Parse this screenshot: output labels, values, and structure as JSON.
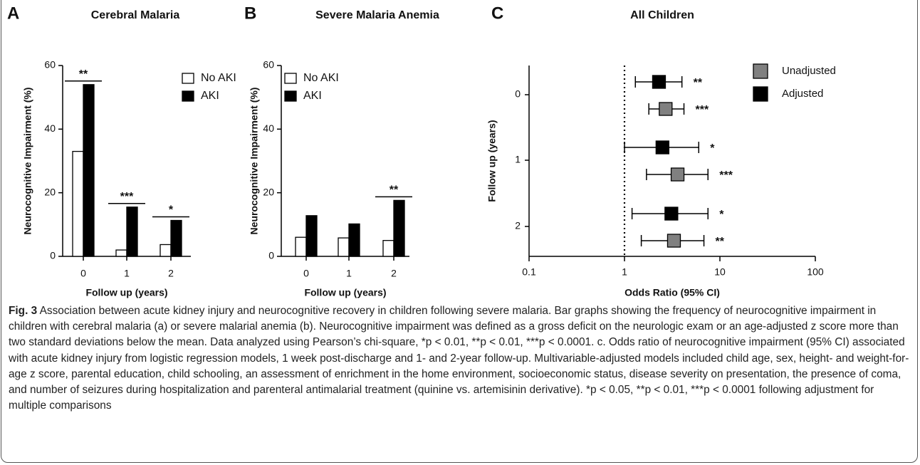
{
  "chart_data": [
    {
      "type": "bar",
      "panel": "A",
      "title": "Cerebral Malaria",
      "xlabel": "Follow up (years)",
      "ylabel": "Neurocognitive Impairment (%)",
      "categories": [
        "0",
        "1",
        "2"
      ],
      "series": [
        {
          "name": "No AKI",
          "color": "#ffffff",
          "values": [
            33,
            2,
            3.7
          ]
        },
        {
          "name": "AKI",
          "color": "#000000",
          "values": [
            54,
            15.5,
            11.3
          ]
        }
      ],
      "annotations": [
        "**",
        "***",
        "*"
      ],
      "ylim": [
        0,
        60
      ],
      "yticks": [
        0,
        20,
        40,
        60
      ]
    },
    {
      "type": "bar",
      "panel": "B",
      "title": "Severe Malaria Anemia",
      "xlabel": "Follow up (years)",
      "ylabel": "Neurocognitive Impairment (%)",
      "categories": [
        "0",
        "1",
        "2"
      ],
      "series": [
        {
          "name": "No AKI",
          "color": "#ffffff",
          "values": [
            6,
            5.8,
            5
          ]
        },
        {
          "name": "AKI",
          "color": "#000000",
          "values": [
            12.8,
            10.2,
            17.6
          ]
        }
      ],
      "annotations": [
        null,
        null,
        "**"
      ],
      "ylim": [
        0,
        60
      ],
      "yticks": [
        0,
        20,
        40,
        60
      ]
    },
    {
      "type": "forest",
      "panel": "C",
      "title": "All Children",
      "xlabel": "Odds Ratio (95% CI)",
      "ylabel": "Follow up (years)",
      "categories": [
        "0",
        "1",
        "2"
      ],
      "log_x": true,
      "reference_line": 1,
      "series": [
        {
          "name": "Unadjusted",
          "color": "#808080",
          "values": [
            2.7,
            3.6,
            3.3
          ],
          "lower": [
            1.8,
            1.7,
            1.5
          ],
          "upper": [
            4.2,
            7.5,
            6.8
          ],
          "labels": [
            "***",
            "***",
            "**"
          ]
        },
        {
          "name": "Adjusted",
          "color": "#000000",
          "values": [
            2.3,
            2.5,
            3.1
          ],
          "lower": [
            1.3,
            1.0,
            1.2
          ],
          "upper": [
            4.0,
            6.0,
            7.5
          ],
          "labels": [
            "**",
            "*",
            "*"
          ]
        }
      ],
      "xlim": [
        0.1,
        100
      ],
      "xticks": [
        0.1,
        1,
        10,
        100
      ]
    }
  ],
  "caption": {
    "label": "Fig. 3",
    "text": "Association between acute kidney injury and neurocognitive recovery in children following severe malaria. Bar graphs showing the frequency of neurocognitive impairment in children with cerebral malaria (a) or severe malarial anemia (b). Neurocognitive impairment was defined as a gross deficit on the neurologic exam or an age-adjusted z score more than two standard deviations below the mean. Data analyzed using Pearson’s chi-square, *p < 0.01, **p < 0.01, ***p < 0.0001. c. Odds ratio of neurocognitive impairment (95% CI) associated with acute kidney injury from logistic regression models, 1 week post-discharge and 1- and 2-year follow-up. Multivariable-adjusted models included child age, sex, height- and weight-for-age z score, parental education, child schooling, an assessment of enrichment in the home environment, socioeconomic status, disease severity on presentation, the presence of coma, and number of seizures during hospitalization and parenteral antimalarial treatment (quinine vs. artemisinin derivative). *p < 0.05, **p < 0.01, ***p < 0.0001 following adjustment for multiple comparisons"
  }
}
